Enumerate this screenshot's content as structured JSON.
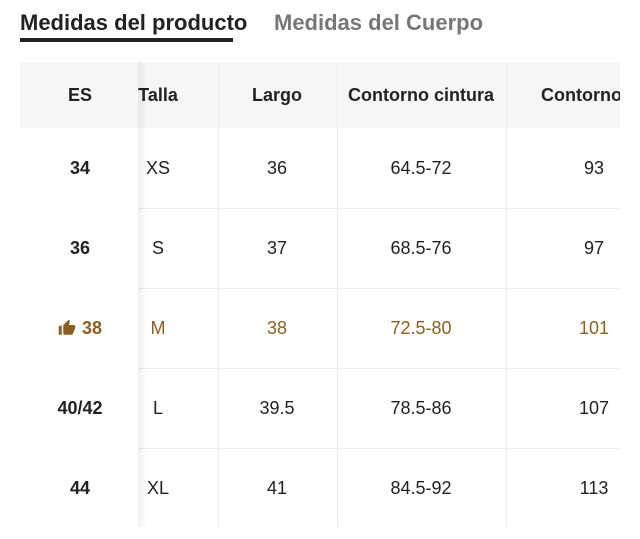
{
  "tabs": [
    "Medidas del producto",
    "Medidas del Cuerpo"
  ],
  "table": {
    "headers": [
      "ES",
      "Talla",
      "Largo",
      "Contorno cintura",
      "Contorno ca"
    ],
    "rows": [
      [
        "34",
        "XS",
        "36",
        "64.5-72",
        "93"
      ],
      [
        "36",
        "S",
        "37",
        "68.5-76",
        "97"
      ],
      [
        "38",
        "M",
        "38",
        "72.5-80",
        "101"
      ],
      [
        "40/42",
        "L",
        "39.5",
        "78.5-86",
        "107"
      ],
      [
        "44",
        "XL",
        "41",
        "84.5-92",
        "113"
      ]
    ],
    "recommended_row": 2
  }
}
